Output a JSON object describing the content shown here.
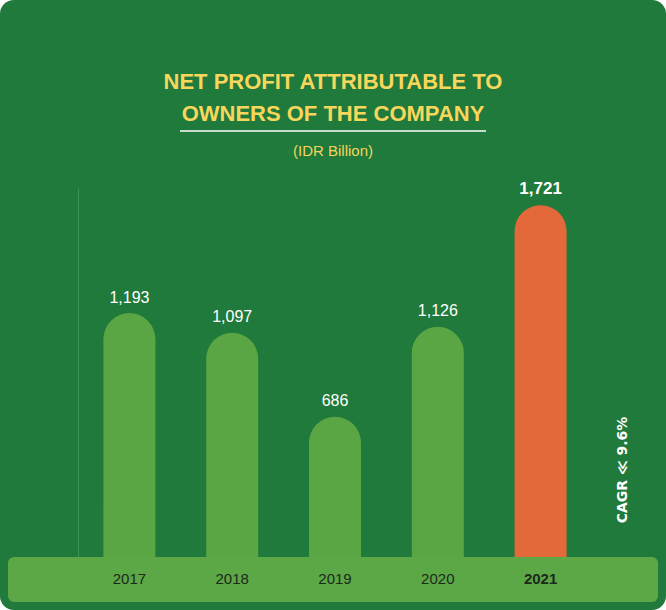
{
  "chart_data": {
    "type": "bar",
    "title": "NET PROFIT ATTRIBUTABLE TO OWNERS OF THE COMPANY",
    "subtitle": "(IDR Billion)",
    "categories": [
      "2017",
      "2018",
      "2019",
      "2020",
      "2021"
    ],
    "values": [
      1193,
      1097,
      686,
      1126,
      1721
    ],
    "value_labels": [
      "1,193",
      "1,097",
      "686",
      "1,126",
      "1,721"
    ],
    "colors": [
      "#5aa544",
      "#5aa544",
      "#5aa544",
      "#5aa544",
      "#e4693a"
    ],
    "data_labels": true,
    "annotation": "CAGR ≪ 9.6%",
    "ylim": [
      0,
      1800
    ],
    "grid": false,
    "tick_labels": "x"
  }
}
